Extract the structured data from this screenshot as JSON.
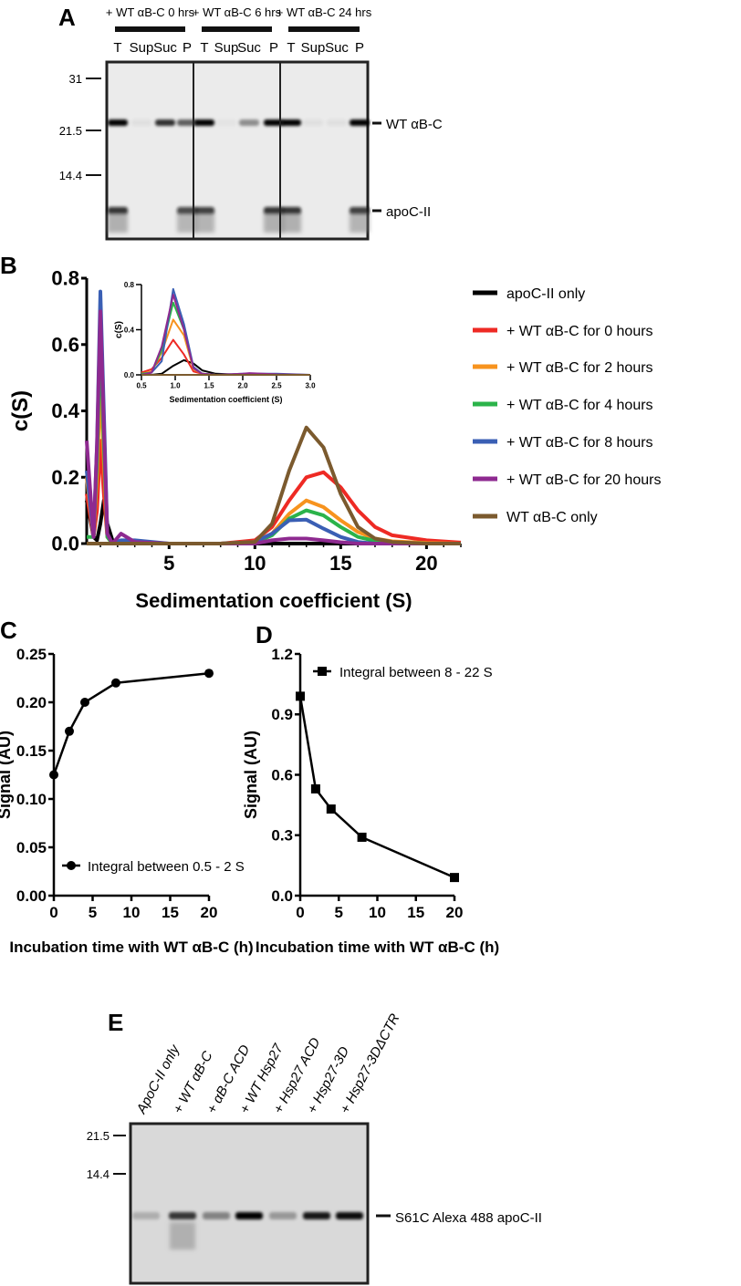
{
  "panels": {
    "a": "A",
    "b": "B",
    "c": "C",
    "d": "D",
    "e": "E"
  },
  "gel_a": {
    "groups": [
      "+ WT αB-C 0 hrs",
      "+ WT αB-C 6 hrs",
      "+ WT αB-C 24 hrs"
    ],
    "lanes": [
      "T",
      "Sup",
      "Suc",
      "P"
    ],
    "markers": [
      "31",
      "21.5",
      "14.4"
    ],
    "band_labels": [
      "WT αB-C",
      "apoC-II"
    ],
    "band_intensity": {
      "wt": [
        [
          1,
          0.05,
          0.8,
          0.6
        ],
        [
          1,
          0.03,
          0.4,
          1
        ],
        [
          1,
          0.05,
          0.05,
          1
        ]
      ],
      "apoc": [
        [
          0.85,
          0,
          0,
          0.75
        ],
        [
          0.8,
          0,
          0,
          0.85
        ],
        [
          0.85,
          0,
          0,
          0.8
        ]
      ]
    }
  },
  "gel_e": {
    "lanes": [
      "ApoC-II only",
      "+ WT αB-C",
      "+ αB-C ACD",
      "+ WT Hsp27",
      "+ Hsp27 ACD",
      "+ Hsp27-3D",
      "+ Hsp27-3DΔCTR"
    ],
    "markers": [
      "21.5",
      "14.4"
    ],
    "band_label": "S61C Alexa 488 apoC-II",
    "band_intensity": [
      0.2,
      0.75,
      0.4,
      1,
      0.3,
      0.9,
      0.95
    ]
  },
  "chart_data": [
    {
      "id": "B",
      "type": "line",
      "xlabel": "Sedimentation coefficient (S)",
      "ylabel": "c(S)",
      "xlim": [
        0.2,
        22
      ],
      "ylim": [
        0,
        0.8
      ],
      "xticks": [
        "5",
        "10",
        "15",
        "20"
      ],
      "xtick_values": [
        5,
        10,
        15,
        20
      ],
      "yticks": [
        "0.0",
        "0.2",
        "0.4",
        "0.6",
        "0.8"
      ],
      "ytick_values": [
        0,
        0.2,
        0.4,
        0.6,
        0.8
      ],
      "legend_position": "right",
      "x": [
        0.2,
        0.6,
        0.8,
        1.0,
        1.2,
        1.4,
        1.7,
        2.2,
        3,
        5,
        8,
        10,
        11,
        12,
        13,
        14,
        15,
        16,
        17,
        18,
        20,
        22
      ],
      "series": [
        {
          "name": "apoC-II only",
          "color": "#000000",
          "values": [
            0.13,
            0.02,
            0.01,
            0.06,
            0.13,
            0.06,
            0.01,
            0,
            0,
            0,
            0,
            0,
            0,
            0,
            0,
            0,
            0,
            0,
            0,
            0,
            0,
            0
          ]
        },
        {
          "name": "+ WT αB-C for 0 hours",
          "color": "#ee2a24",
          "values": [
            0.15,
            0.02,
            0.1,
            0.31,
            0.15,
            0.02,
            0,
            0,
            0,
            0,
            0,
            0.01,
            0.05,
            0.13,
            0.2,
            0.215,
            0.17,
            0.1,
            0.05,
            0.025,
            0.01,
            0.003
          ]
        },
        {
          "name": "+ WT αB-C for 2 hours",
          "color": "#f7931e",
          "values": [
            0.2,
            0.02,
            0.2,
            0.49,
            0.25,
            0.02,
            0,
            0,
            0,
            0,
            0,
            0.005,
            0.03,
            0.09,
            0.13,
            0.11,
            0.07,
            0.035,
            0.015,
            0.007,
            0.002,
            0
          ]
        },
        {
          "name": "+ WT αB-C for 4 hours",
          "color": "#2bb34a",
          "values": [
            0.02,
            0.02,
            0.25,
            0.64,
            0.3,
            0.02,
            0,
            0,
            0,
            0,
            0,
            0.003,
            0.025,
            0.075,
            0.1,
            0.085,
            0.05,
            0.02,
            0.008,
            0.003,
            0,
            0
          ]
        },
        {
          "name": "+ WT αB-C for 8 hours",
          "color": "#3a5fb4",
          "values": [
            0.22,
            0.02,
            0.3,
            0.76,
            0.4,
            0.03,
            0,
            0.01,
            0.01,
            0,
            0,
            0.005,
            0.03,
            0.07,
            0.072,
            0.045,
            0.02,
            0.005,
            0,
            0,
            0,
            0
          ]
        },
        {
          "name": "+ WT αB-C for 20 hours",
          "color": "#8e2a90",
          "values": [
            0.31,
            0.02,
            0.3,
            0.7,
            0.35,
            0.03,
            0,
            0.03,
            0.005,
            0,
            0,
            0,
            0.01,
            0.015,
            0.015,
            0.01,
            0.004,
            0,
            0,
            0,
            0,
            0
          ]
        },
        {
          "name": "WT αB-C only",
          "color": "#7b5a2e",
          "values": [
            0,
            0,
            0,
            0,
            0,
            0,
            0,
            0,
            0,
            0,
            0,
            0.005,
            0.06,
            0.22,
            0.35,
            0.29,
            0.15,
            0.05,
            0.015,
            0.005,
            0,
            0
          ]
        }
      ]
    },
    {
      "id": "B-inset",
      "type": "line",
      "xlabel": "Sedimentation coefficient (S)",
      "ylabel": "c(S)",
      "xlim": [
        0.5,
        3.0
      ],
      "ylim": [
        0,
        0.8
      ],
      "xticks": [
        "0.5",
        "1.0",
        "1.5",
        "2.0",
        "2.5",
        "3.0"
      ],
      "xtick_values": [
        0.5,
        1.0,
        1.5,
        2.0,
        2.5,
        3.0
      ],
      "yticks": [
        "0.0",
        "0.4",
        "0.8"
      ],
      "ytick_values": [
        0,
        0.4,
        0.8
      ],
      "x": [
        0.5,
        0.65,
        0.8,
        0.97,
        1.13,
        1.27,
        1.4,
        1.6,
        2.0,
        2.1,
        2.5,
        3.0
      ],
      "series": [
        {
          "name": "apoC-II only",
          "color": "#000000",
          "values": [
            0,
            0,
            0.01,
            0.08,
            0.13,
            0.1,
            0.04,
            0.01,
            0,
            0,
            0,
            0
          ]
        },
        {
          "name": "+ WT αB-C for 0 hours",
          "color": "#ee2a24",
          "values": [
            0.02,
            0.05,
            0.15,
            0.31,
            0.18,
            0.03,
            0.01,
            0,
            0,
            0,
            0,
            0
          ]
        },
        {
          "name": "+ WT αB-C for 2 hours",
          "color": "#f7931e",
          "values": [
            0.01,
            0.03,
            0.2,
            0.49,
            0.35,
            0.05,
            0.01,
            0,
            0,
            0,
            0,
            0
          ]
        },
        {
          "name": "+ WT αB-C for 4 hours",
          "color": "#2bb34a",
          "values": [
            0.01,
            0.02,
            0.22,
            0.64,
            0.4,
            0.06,
            0.01,
            0,
            0,
            0,
            0,
            0
          ]
        },
        {
          "name": "+ WT αB-C for 8 hours",
          "color": "#3a5fb4",
          "values": [
            0,
            0.02,
            0.12,
            0.76,
            0.45,
            0.07,
            0.01,
            0,
            0.01,
            0.01,
            0.01,
            0
          ]
        },
        {
          "name": "+ WT αB-C for 20 hours",
          "color": "#8e2a90",
          "values": [
            0,
            0.02,
            0.25,
            0.71,
            0.4,
            0.06,
            0.01,
            0,
            0.01,
            0.015,
            0.005,
            0
          ]
        },
        {
          "name": "WT αB-C only",
          "color": "#7b5a2e",
          "values": [
            0,
            0,
            0,
            0,
            0,
            0,
            0,
            0,
            0,
            0,
            0,
            0
          ]
        }
      ]
    },
    {
      "id": "C",
      "type": "line",
      "xlabel": "Incubation time with WT αB-C (h)",
      "ylabel": "Signal (AU)",
      "xlim": [
        0,
        20
      ],
      "ylim": [
        0,
        0.25
      ],
      "xticks": [
        "0",
        "5",
        "10",
        "15",
        "20"
      ],
      "xtick_values": [
        0,
        5,
        10,
        15,
        20
      ],
      "yticks": [
        "0.00",
        "0.05",
        "0.10",
        "0.15",
        "0.20",
        "0.25"
      ],
      "ytick_values": [
        0,
        0.05,
        0.1,
        0.15,
        0.2,
        0.25
      ],
      "legend_position": "bottom-left",
      "marker": "circle",
      "series": [
        {
          "name": "Integral between 0.5 - 2 S",
          "x": [
            0,
            2,
            4,
            8,
            20
          ],
          "values": [
            0.125,
            0.17,
            0.2,
            0.22,
            0.23
          ]
        }
      ]
    },
    {
      "id": "D",
      "type": "line",
      "xlabel": "Incubation time with WT αB-C (h)",
      "ylabel": "Signal (AU)",
      "xlim": [
        0,
        20
      ],
      "ylim": [
        0,
        1.2
      ],
      "xticks": [
        "0",
        "5",
        "10",
        "15",
        "20"
      ],
      "xtick_values": [
        0,
        5,
        10,
        15,
        20
      ],
      "yticks": [
        "0.0",
        "0.3",
        "0.6",
        "0.9",
        "1.2"
      ],
      "ytick_values": [
        0,
        0.3,
        0.6,
        0.9,
        1.2
      ],
      "legend_position": "top-left",
      "marker": "square",
      "series": [
        {
          "name": "Integral between 8 - 22 S",
          "x": [
            0,
            2,
            4,
            8,
            20
          ],
          "values": [
            0.99,
            0.53,
            0.43,
            0.29,
            0.09
          ]
        }
      ]
    }
  ]
}
